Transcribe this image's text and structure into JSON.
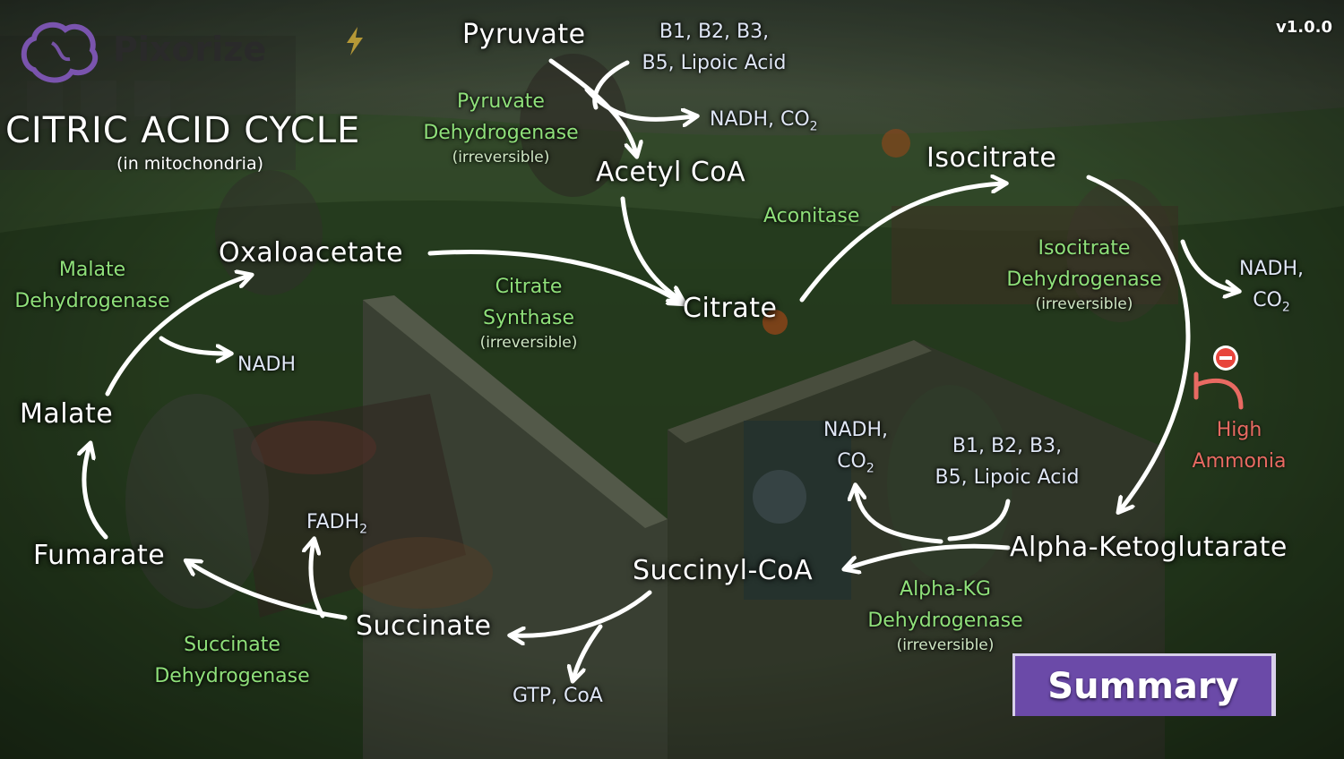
{
  "brand": {
    "name": "Pixorize"
  },
  "version": "v1.0.0",
  "title": "CITRIC ACID CYCLE",
  "subtitle": "(in mitochondria)",
  "molecules": {
    "pyruvate": "Pyruvate",
    "acetyl_coa": "Acetyl CoA",
    "citrate": "Citrate",
    "isocitrate": "Isocitrate",
    "alpha_kg": "Alpha-Ketoglutarate",
    "succinyl_coa": "Succinyl-CoA",
    "succinate": "Succinate",
    "fumarate": "Fumarate",
    "malate": "Malate",
    "oxaloacetate": "Oxaloacetate"
  },
  "enzymes": {
    "pdh": {
      "line1": "Pyruvate",
      "line2": "Dehydrogenase",
      "note": "(irreversible)"
    },
    "citrate_synthase": {
      "line1": "Citrate",
      "line2": "Synthase",
      "note": "(irreversible)"
    },
    "aconitase": {
      "line1": "Aconitase"
    },
    "idh": {
      "line1": "Isocitrate",
      "line2": "Dehydrogenase",
      "note": "(irreversible)"
    },
    "akgdh": {
      "line1": "Alpha-KG",
      "line2": "Dehydrogenase",
      "note": "(irreversible)"
    },
    "sdh": {
      "line1": "Succinate",
      "line2": "Dehydrogenase"
    },
    "mdh": {
      "line1": "Malate",
      "line2": "Dehydrogenase"
    }
  },
  "cofactors": {
    "pdh_vitamins": {
      "line1": "B1, B2, B3,",
      "line2": "B5, Lipoic Acid"
    },
    "pdh_products": {
      "main": "NADH, CO",
      "sub": "2"
    },
    "idh_products": {
      "line1": "NADH,",
      "line2": "CO",
      "sub": "2"
    },
    "akgdh_products": {
      "line1": "NADH,",
      "line2": "CO",
      "sub": "2"
    },
    "akgdh_vitamins": {
      "line1": "B1, B2, B3,",
      "line2": "B5, Lipoic Acid"
    },
    "succinyl_products": {
      "main": "GTP, CoA"
    },
    "sdh_products": {
      "main": "FADH",
      "sub": "2"
    },
    "mdh_products": {
      "main": "NADH"
    }
  },
  "inhibitor": {
    "line1": "High",
    "line2": "Ammonia"
  },
  "button": {
    "summary": "Summary"
  },
  "colors": {
    "molecule": "#ffffff",
    "enzyme": "#8fe07a",
    "cofactor": "#dfe6f5",
    "inhibitor": "#e86a62",
    "button": "#6b4aa8",
    "brand_logo": "#8a5cc7"
  }
}
